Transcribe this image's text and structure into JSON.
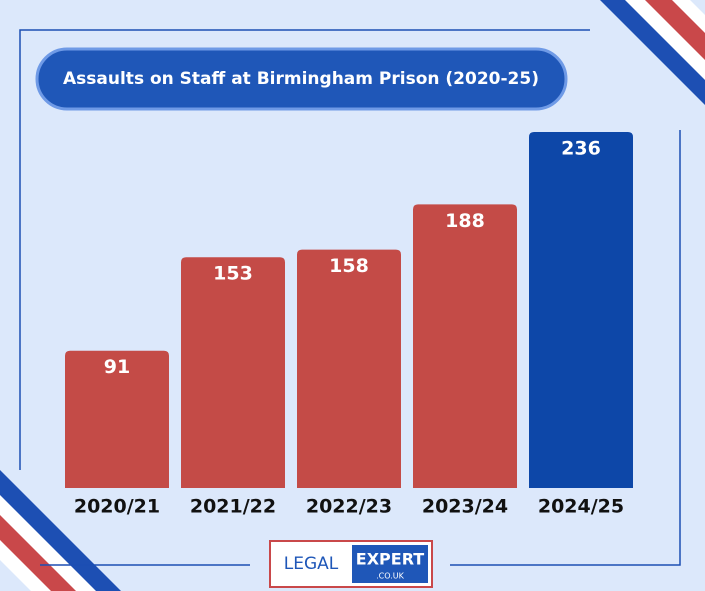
{
  "chart_data": {
    "type": "bar",
    "title": "Assaults on Staff at Birmingham Prison (2020-25)",
    "categories": [
      "2020/21",
      "2021/22",
      "2022/23",
      "2023/24",
      "2024/25"
    ],
    "values": [
      91,
      153,
      158,
      188,
      236
    ],
    "colors": [
      "#c44b47",
      "#c44b47",
      "#c44b47",
      "#c44b47",
      "#0d47a8"
    ]
  },
  "logo": {
    "left": "LEGAL",
    "right": "EXPERT",
    "sub": ".CO.UK"
  }
}
